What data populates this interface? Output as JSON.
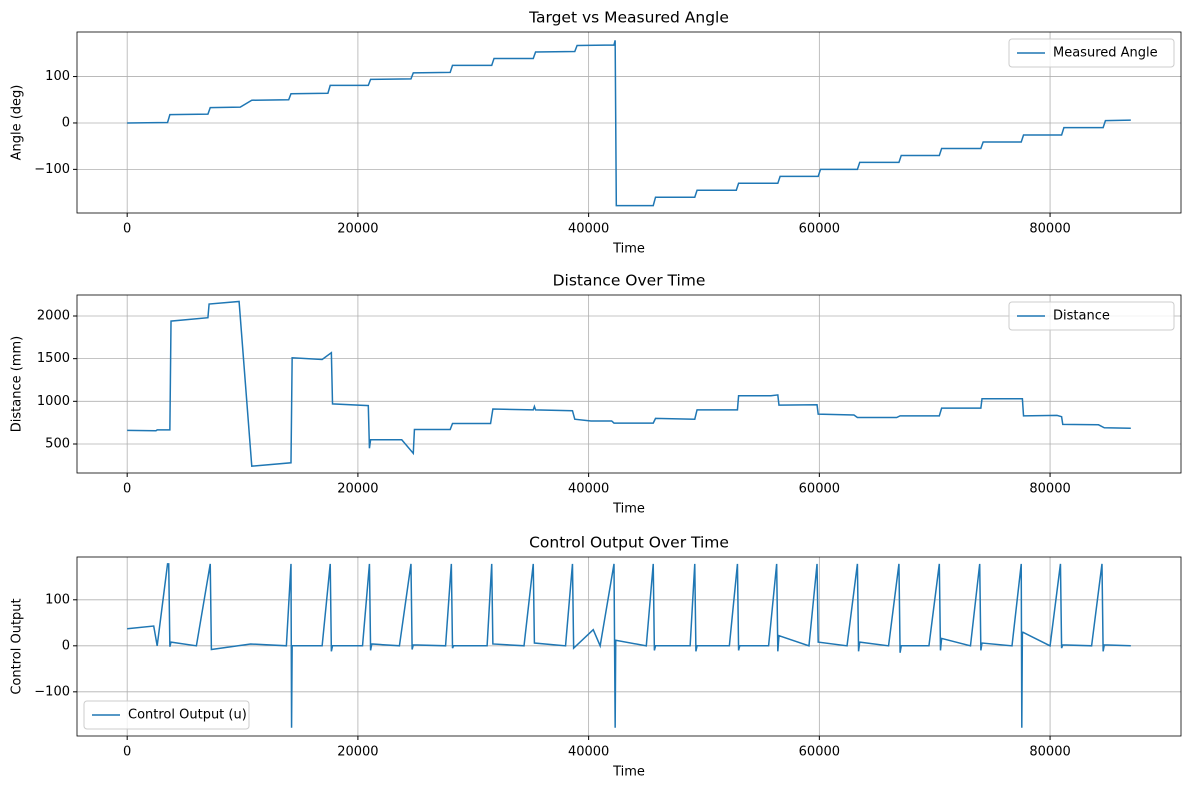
{
  "chart_data": [
    {
      "type": "line",
      "title": "Target vs Measured Angle",
      "xlabel": "Time",
      "ylabel": "Angle (deg)",
      "xlim": [
        -4350,
        91350
      ],
      "ylim": [
        -194,
        196
      ],
      "xticks": [
        0,
        20000,
        40000,
        60000,
        80000
      ],
      "yticks": [
        {
          "value": -100,
          "label": "−100"
        },
        0,
        100
      ],
      "grid": true,
      "legend": "upper right",
      "x": [
        0,
        3500,
        3700,
        7000,
        7200,
        9800,
        10800,
        14000,
        14200,
        17400,
        17600,
        20900,
        21100,
        24600,
        24800,
        28000,
        28200,
        31600,
        31800,
        35200,
        35400,
        38800,
        39000,
        42200,
        42300,
        42400,
        45600,
        45800,
        49200,
        49400,
        52800,
        53000,
        56400,
        56600,
        59900,
        60100,
        63300,
        63500,
        66900,
        67100,
        70400,
        70600,
        74000,
        74200,
        77500,
        77700,
        81000,
        81200,
        84600,
        84800,
        87000
      ],
      "series": [
        {
          "name": "Measured Angle",
          "color": "#1f77b4",
          "values": [
            0,
            1,
            18,
            19,
            33,
            34,
            49,
            50,
            63,
            64,
            81,
            81,
            94,
            95,
            108,
            109,
            124,
            124,
            139,
            139,
            153,
            154,
            167,
            168,
            178,
            -178,
            -178,
            -160,
            -160,
            -145,
            -145,
            -130,
            -130,
            -115,
            -115,
            -100,
            -100,
            -85,
            -85,
            -70,
            -70,
            -55,
            -55,
            -41,
            -41,
            -26,
            -26,
            -10,
            -10,
            5,
            6
          ]
        }
      ]
    },
    {
      "type": "line",
      "title": "Distance Over Time",
      "xlabel": "Time",
      "ylabel": "Distance (mm)",
      "xlim": [
        -4350,
        91350
      ],
      "ylim": [
        160,
        2246
      ],
      "xticks": [
        0,
        20000,
        40000,
        60000,
        80000
      ],
      "yticks": [
        500,
        1000,
        1500,
        2000
      ],
      "grid": true,
      "legend": "upper right",
      "x": [
        0,
        2500,
        2600,
        3700,
        3800,
        7000,
        7100,
        9700,
        10800,
        14200,
        14300,
        16900,
        17700,
        17800,
        20900,
        21000,
        21100,
        23800,
        24800,
        24900,
        28000,
        28200,
        31500,
        31700,
        35200,
        35300,
        35400,
        38600,
        38800,
        40200,
        42000,
        42200,
        45600,
        45800,
        49200,
        49400,
        52900,
        53000,
        55800,
        56400,
        56500,
        59800,
        59900,
        63000,
        63300,
        66700,
        67000,
        70400,
        70600,
        74000,
        74100,
        77600,
        77700,
        80600,
        81000,
        81100,
        84200,
        84700,
        87000
      ],
      "series": [
        {
          "name": "Distance",
          "color": "#1f77b4",
          "values": [
            660,
            655,
            665,
            665,
            1940,
            1980,
            2140,
            2170,
            240,
            280,
            1510,
            1490,
            1570,
            970,
            950,
            450,
            550,
            550,
            390,
            670,
            670,
            740,
            740,
            910,
            900,
            940,
            900,
            890,
            790,
            770,
            770,
            745,
            745,
            800,
            790,
            900,
            900,
            1065,
            1065,
            1075,
            955,
            960,
            850,
            840,
            810,
            810,
            830,
            830,
            920,
            920,
            1030,
            1030,
            830,
            835,
            820,
            730,
            725,
            690,
            685
          ]
        }
      ]
    },
    {
      "type": "line",
      "title": "Control Output Over Time",
      "xlabel": "Time",
      "ylabel": "Control Output",
      "xlim": [
        -4350,
        91350
      ],
      "ylim": [
        -196,
        193
      ],
      "xticks": [
        0,
        20000,
        40000,
        60000,
        80000
      ],
      "yticks": [
        {
          "value": -100,
          "label": "−100"
        },
        0,
        100
      ],
      "grid": true,
      "legend": "lower left",
      "x": [
        0,
        2300,
        2600,
        3500,
        3600,
        3700,
        3800,
        6000,
        7200,
        7300,
        10700,
        13800,
        14200,
        14250,
        14300,
        16900,
        17600,
        17700,
        17800,
        20400,
        21000,
        21100,
        21200,
        23600,
        24600,
        24700,
        24800,
        27600,
        28100,
        28200,
        28300,
        31200,
        31600,
        31700,
        34400,
        35200,
        35300,
        38000,
        38600,
        38700,
        40400,
        41000,
        42200,
        42300,
        42350,
        45000,
        45600,
        45700,
        45800,
        48800,
        49200,
        49300,
        49400,
        52200,
        52900,
        53000,
        53100,
        55600,
        56300,
        56400,
        56500,
        59100,
        59800,
        59900,
        62400,
        63300,
        63400,
        63500,
        66000,
        66900,
        67000,
        67100,
        69500,
        70400,
        70500,
        70600,
        73100,
        73900,
        74000,
        74100,
        76700,
        77500,
        77550,
        77600,
        80000,
        80900,
        81000,
        81100,
        83600,
        84500,
        84600,
        84700,
        87000
      ],
      "series": [
        {
          "name": "Control Output (u)",
          "color": "#1f77b4",
          "values": [
            37,
            43,
            0,
            178,
            178,
            -2,
            8,
            0,
            178,
            -8,
            4,
            0,
            178,
            -178,
            0,
            0,
            178,
            -12,
            0,
            0,
            178,
            -10,
            4,
            0,
            178,
            -8,
            2,
            0,
            178,
            -5,
            0,
            0,
            178,
            4,
            0,
            178,
            6,
            0,
            178,
            -5,
            35,
            0,
            178,
            -178,
            12,
            0,
            178,
            -10,
            0,
            0,
            178,
            -12,
            0,
            0,
            178,
            -10,
            0,
            0,
            178,
            -12,
            22,
            0,
            178,
            8,
            0,
            178,
            -12,
            8,
            0,
            178,
            -15,
            0,
            0,
            178,
            -10,
            16,
            0,
            178,
            -10,
            6,
            0,
            178,
            -178,
            30,
            0,
            178,
            -5,
            2,
            0,
            178,
            -12,
            2,
            0
          ]
        }
      ]
    }
  ]
}
